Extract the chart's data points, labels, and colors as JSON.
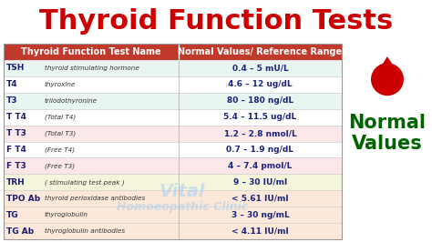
{
  "title": "Thyroid Function Tests",
  "title_color": "#cc0000",
  "bg_color": "#ffffff",
  "table_header": [
    "Thyroid Function Test Name",
    "Normal Values/ Reference Range"
  ],
  "header_bg": "#c0392b",
  "header_fg": "#ffffff",
  "rows": [
    [
      "TSH",
      "thyroid stimulating hormone",
      "0.4 – 5 mU/L",
      "#e8f5f0"
    ],
    [
      "T4",
      "thyroxine",
      "4.6 – 12 ug/dL",
      "#ffffff"
    ],
    [
      "T3",
      "triiodothyronine",
      "80 – 180 ng/dL",
      "#e8f5f0"
    ],
    [
      "T T4",
      "(Total T4)",
      "5.4 – 11.5 ug/dL",
      "#ffffff"
    ],
    [
      "T T3",
      "(Total T3)",
      "1.2 – 2.8 nmol/L",
      "#fce8e8"
    ],
    [
      "F T4",
      "(Free T4)",
      "0.7 – 1.9 ng/dL",
      "#ffffff"
    ],
    [
      "F T3",
      "(Free T3)",
      "4 – 7.4 pmol/L",
      "#fce8e8"
    ],
    [
      "TRH",
      "( stimulating test peak )",
      "9 – 30 IU/ml",
      "#f5f5dc"
    ],
    [
      "TPO Ab",
      "thyroid perioxidase antibodies",
      "< 5.61 IU/ml",
      "#fce8d8"
    ],
    [
      "TG",
      "thyroglobulin",
      "3 – 30 ng/mL",
      "#fce8d8"
    ],
    [
      "TG Ab",
      "thyroglobulin antibodies",
      "< 4.11 IU/ml",
      "#fce8d8"
    ]
  ],
  "side_text_normal": "Normal",
  "side_text_values": "Values",
  "side_text_color": "#006400",
  "drop_color": "#cc0000",
  "watermark_line1": "Vital",
  "watermark_line2": "Homoeopathic Clinic"
}
